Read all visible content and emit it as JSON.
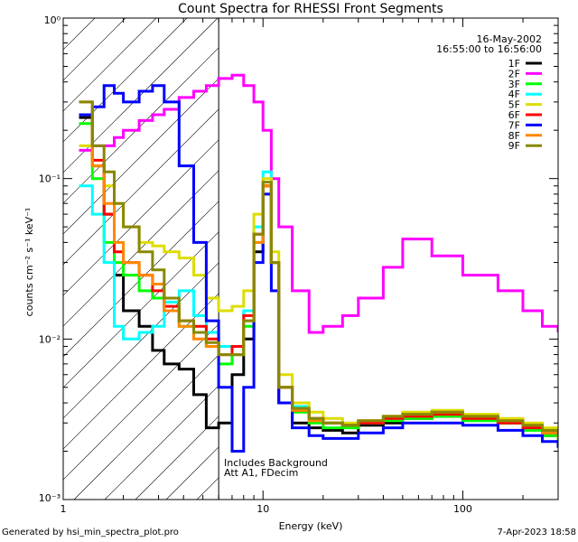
{
  "footer": {
    "generated_by": "Generated by hsi_min_spectra_plot.pro",
    "timestamp": "7-Apr-2023 18:58"
  },
  "chart_data": {
    "type": "line",
    "title": "Count Spectra for RHESSI Front Segments",
    "xlabel": "Energy (keV)",
    "ylabel": "counts cm⁻² s⁻¹ keV⁻¹",
    "xscale": "log",
    "yscale": "log",
    "xlim": [
      1,
      300
    ],
    "ylim": [
      0.001,
      1
    ],
    "x_ticks": [
      1,
      10,
      100
    ],
    "x_tick_labels": [
      "1",
      "10",
      "100"
    ],
    "y_ticks": [
      0.001,
      0.01,
      0.1,
      1
    ],
    "y_tick_labels": [
      "10⁻³",
      "10⁻²",
      "10⁻¹",
      "10⁰"
    ],
    "date": "16-May-2002",
    "time_range": "16:55:00 to 16:56:00",
    "legend_position": "top-right",
    "annotations": [
      "Includes Background",
      "Att A1, FDecim"
    ],
    "hatched_region_max_x": 6,
    "series": [
      {
        "name": "1F",
        "color": "#000000",
        "x": [
          1.2,
          1.4,
          1.6,
          1.8,
          2.0,
          2.4,
          2.8,
          3.2,
          3.8,
          4.5,
          5.2,
          6,
          7,
          8,
          9,
          10,
          11,
          12,
          14,
          17,
          20,
          25,
          30,
          40,
          50,
          70,
          100,
          150,
          200,
          250,
          300
        ],
        "y": [
          0.24,
          0.12,
          0.06,
          0.025,
          0.015,
          0.012,
          0.0085,
          0.007,
          0.0065,
          0.0045,
          0.0028,
          0.003,
          0.006,
          0.01,
          0.035,
          0.09,
          0.03,
          0.004,
          0.003,
          0.0028,
          0.0027,
          0.0026,
          0.0029,
          0.003,
          0.0032,
          0.0033,
          0.0032,
          0.003,
          0.0028,
          0.0025,
          0.0023
        ]
      },
      {
        "name": "2F",
        "color": "#ff00ff",
        "x": [
          1.2,
          1.4,
          1.6,
          1.8,
          2.0,
          2.4,
          2.8,
          3.2,
          3.8,
          4.5,
          5.2,
          6,
          7,
          8,
          9,
          10,
          11,
          12,
          14,
          17,
          20,
          25,
          30,
          40,
          50,
          70,
          100,
          150,
          200,
          250,
          300
        ],
        "y": [
          0.15,
          0.16,
          0.16,
          0.18,
          0.2,
          0.23,
          0.25,
          0.27,
          0.32,
          0.35,
          0.38,
          0.42,
          0.44,
          0.38,
          0.3,
          0.2,
          0.1,
          0.05,
          0.02,
          0.011,
          0.012,
          0.014,
          0.018,
          0.028,
          0.042,
          0.033,
          0.025,
          0.02,
          0.015,
          0.012,
          0.011
        ]
      },
      {
        "name": "3F",
        "color": "#00ff00",
        "x": [
          1.2,
          1.4,
          1.6,
          1.8,
          2.0,
          2.4,
          2.8,
          3.2,
          3.8,
          4.5,
          5.2,
          6,
          7,
          8,
          9,
          10,
          11,
          12,
          14,
          17,
          20,
          25,
          30,
          40,
          50,
          70,
          100,
          150,
          200,
          250,
          300
        ],
        "y": [
          0.22,
          0.1,
          0.04,
          0.03,
          0.025,
          0.02,
          0.018,
          0.015,
          0.012,
          0.011,
          0.009,
          0.007,
          0.008,
          0.012,
          0.04,
          0.08,
          0.03,
          0.005,
          0.0035,
          0.003,
          0.0028,
          0.0028,
          0.003,
          0.0031,
          0.0032,
          0.0033,
          0.0031,
          0.003,
          0.0027,
          0.0025,
          0.0022
        ]
      },
      {
        "name": "4F",
        "color": "#00ffff",
        "x": [
          1.2,
          1.4,
          1.6,
          1.8,
          2.0,
          2.4,
          2.8,
          3.2,
          3.8,
          4.5,
          5.2,
          6,
          7,
          8,
          9,
          10,
          11,
          12,
          14,
          17,
          20,
          25,
          30,
          40,
          50,
          70,
          100,
          150,
          200,
          250,
          300
        ],
        "y": [
          0.09,
          0.06,
          0.03,
          0.012,
          0.01,
          0.011,
          0.012,
          0.017,
          0.02,
          0.014,
          0.011,
          0.009,
          0.009,
          0.015,
          0.05,
          0.11,
          0.03,
          0.005,
          0.0038,
          0.0032,
          0.003,
          0.0029,
          0.003,
          0.0032,
          0.0034,
          0.0035,
          0.0033,
          0.0031,
          0.0028,
          0.0026,
          0.0024
        ]
      },
      {
        "name": "5F",
        "color": "#dddd00",
        "x": [
          1.2,
          1.4,
          1.6,
          1.8,
          2.0,
          2.4,
          2.8,
          3.2,
          3.8,
          4.5,
          5.2,
          6,
          7,
          8,
          9,
          10,
          11,
          12,
          14,
          17,
          20,
          25,
          30,
          40,
          50,
          70,
          100,
          150,
          200,
          250,
          300
        ],
        "y": [
          0.16,
          0.12,
          0.09,
          0.07,
          0.05,
          0.04,
          0.038,
          0.035,
          0.032,
          0.025,
          0.018,
          0.015,
          0.016,
          0.02,
          0.06,
          0.1,
          0.035,
          0.006,
          0.004,
          0.0035,
          0.0032,
          0.003,
          0.0031,
          0.0033,
          0.0035,
          0.0036,
          0.0034,
          0.0032,
          0.003,
          0.0028,
          0.0026
        ]
      },
      {
        "name": "6F",
        "color": "#ff0000",
        "x": [
          1.2,
          1.4,
          1.6,
          1.8,
          2.0,
          2.4,
          2.8,
          3.2,
          3.8,
          4.5,
          5.2,
          6,
          7,
          8,
          9,
          10,
          11,
          12,
          14,
          17,
          20,
          25,
          30,
          40,
          50,
          70,
          100,
          150,
          200,
          250,
          300
        ],
        "y": [
          0.25,
          0.13,
          0.06,
          0.035,
          0.03,
          0.025,
          0.02,
          0.016,
          0.013,
          0.012,
          0.01,
          0.008,
          0.009,
          0.014,
          0.045,
          0.09,
          0.03,
          0.005,
          0.0036,
          0.0032,
          0.003,
          0.0029,
          0.003,
          0.0032,
          0.0033,
          0.0034,
          0.0032,
          0.003,
          0.0028,
          0.0026,
          0.0024
        ]
      },
      {
        "name": "7F",
        "color": "#0000ff",
        "x": [
          1.2,
          1.4,
          1.6,
          1.8,
          2.0,
          2.4,
          2.8,
          3.2,
          3.8,
          4.5,
          5.2,
          6,
          7,
          8,
          9,
          10,
          11,
          12,
          14,
          17,
          20,
          25,
          30,
          40,
          50,
          70,
          100,
          150,
          200,
          250,
          300
        ],
        "y": [
          0.25,
          0.28,
          0.38,
          0.34,
          0.3,
          0.35,
          0.38,
          0.3,
          0.12,
          0.04,
          0.013,
          0.005,
          0.002,
          0.005,
          0.03,
          0.08,
          0.02,
          0.004,
          0.0028,
          0.0025,
          0.0024,
          0.0024,
          0.0026,
          0.0028,
          0.003,
          0.003,
          0.0029,
          0.0027,
          0.0025,
          0.0023,
          0.0021
        ]
      },
      {
        "name": "8F",
        "color": "#ff8800",
        "x": [
          1.2,
          1.4,
          1.6,
          1.8,
          2.0,
          2.4,
          2.8,
          3.2,
          3.8,
          4.5,
          5.2,
          6,
          7,
          8,
          9,
          10,
          11,
          12,
          14,
          17,
          20,
          25,
          30,
          40,
          50,
          70,
          100,
          150,
          200,
          250,
          300
        ],
        "y": [
          0.3,
          0.12,
          0.07,
          0.04,
          0.03,
          0.025,
          0.022,
          0.015,
          0.012,
          0.01,
          0.009,
          0.008,
          0.008,
          0.013,
          0.04,
          0.09,
          0.03,
          0.005,
          0.0036,
          0.0031,
          0.003,
          0.0029,
          0.0031,
          0.0033,
          0.0034,
          0.0035,
          0.0033,
          0.0031,
          0.0029,
          0.0026,
          0.0024
        ]
      },
      {
        "name": "9F",
        "color": "#888800",
        "x": [
          1.2,
          1.4,
          1.6,
          1.8,
          2.0,
          2.4,
          2.8,
          3.2,
          3.8,
          4.5,
          5.2,
          6,
          7,
          8,
          9,
          10,
          11,
          12,
          14,
          17,
          20,
          25,
          30,
          40,
          50,
          70,
          100,
          150,
          200,
          250,
          300
        ],
        "y": [
          0.3,
          0.16,
          0.11,
          0.07,
          0.05,
          0.035,
          0.027,
          0.018,
          0.013,
          0.011,
          0.0095,
          0.008,
          0.008,
          0.013,
          0.045,
          0.095,
          0.03,
          0.005,
          0.0037,
          0.0032,
          0.003,
          0.0029,
          0.0031,
          0.0033,
          0.0034,
          0.0035,
          0.0033,
          0.0031,
          0.0029,
          0.0027,
          0.0025
        ]
      }
    ]
  }
}
